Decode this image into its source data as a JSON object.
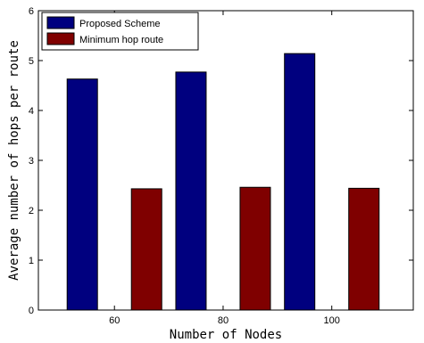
{
  "chart_data": {
    "type": "bar",
    "title": "",
    "xlabel": "Number of Nodes",
    "ylabel": "Average number of hops per route",
    "categories": [
      "60",
      "80",
      "100"
    ],
    "series": [
      {
        "name": "Proposed Scheme",
        "color": "#00007f",
        "values": [
          4.63,
          4.77,
          5.14
        ]
      },
      {
        "name": "Minimum hop route",
        "color": "#7f0000",
        "values": [
          2.43,
          2.46,
          2.44
        ]
      }
    ],
    "ylim": [
      0,
      6
    ],
    "yticks": [
      "0",
      "1",
      "2",
      "3",
      "4",
      "5",
      "6"
    ],
    "grid": false,
    "legend_position": "top-left"
  }
}
